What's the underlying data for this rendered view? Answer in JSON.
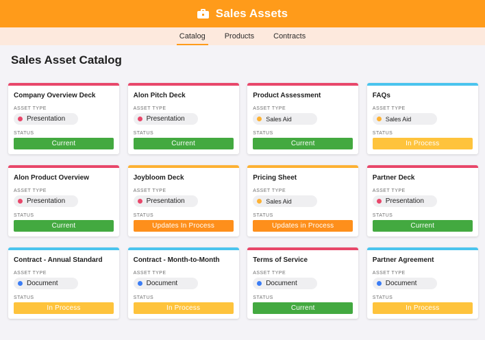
{
  "app": {
    "title": "Sales Assets",
    "icon": "briefcase-icon"
  },
  "tabs": [
    {
      "label": "Catalog",
      "active": true
    },
    {
      "label": "Products",
      "active": false
    },
    {
      "label": "Contracts",
      "active": false
    }
  ],
  "page_title": "Sales Asset Catalog",
  "labels": {
    "asset_type": "ASSET TYPE",
    "status": "STATUS"
  },
  "colors": {
    "Presentation": "#e8476a",
    "Sales Aid": "#fdb133",
    "Document": "#3b7df5",
    "Current": "#43a940",
    "In Process": "#fec33c",
    "Updates In Process": "#fe8f1b",
    "bar_red": "#e8476a",
    "bar_orange": "#fdb133",
    "bar_blue": "#4ac4ee"
  },
  "cards": [
    {
      "name": "Company Overview Deck",
      "bar": "#e8476a",
      "type": "Presentation",
      "status": "Current"
    },
    {
      "name": "Alon Pitch Deck",
      "bar": "#e8476a",
      "type": "Presentation",
      "status": "Current"
    },
    {
      "name": "Product Assessment",
      "bar": "#e8476a",
      "type": "Sales Aid",
      "status": "Current"
    },
    {
      "name": "FAQs",
      "bar": "#4ac4ee",
      "type": "Sales Aid",
      "status": "In Process"
    },
    {
      "name": "Alon Product Overview",
      "bar": "#e8476a",
      "type": "Presentation",
      "status": "Current"
    },
    {
      "name": "Joybloom Deck",
      "bar": "#fdb133",
      "type": "Presentation",
      "status": "Updates In Process"
    },
    {
      "name": "Pricing Sheet",
      "bar": "#fdb133",
      "type": "Sales Aid",
      "status": "Updates in Process"
    },
    {
      "name": "Partner Deck",
      "bar": "#e8476a",
      "type": "Presentation",
      "status": "Current"
    },
    {
      "name": "Contract - Annual Standard",
      "bar": "#4ac4ee",
      "type": "Document",
      "status": "In Process"
    },
    {
      "name": "Contract - Month-to-Month",
      "bar": "#4ac4ee",
      "type": "Document",
      "status": "In Process"
    },
    {
      "name": "Terms of Service",
      "bar": "#e8476a",
      "type": "Document",
      "status": "Current"
    },
    {
      "name": "Partner Agreement",
      "bar": "#4ac4ee",
      "type": "Document",
      "status": "In Process"
    }
  ]
}
